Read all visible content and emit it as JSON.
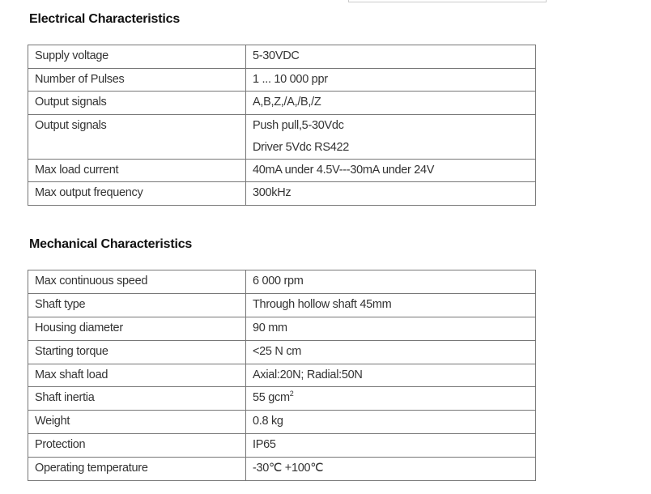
{
  "electrical": {
    "title": "Electrical Characteristics",
    "rows": [
      {
        "label": "Supply voltage",
        "values": [
          "5-30VDC"
        ]
      },
      {
        "label": "Number of Pulses",
        "values": [
          "1 ... 10 000 ppr"
        ]
      },
      {
        "label": "Output signals",
        "values": [
          "A,B,Z,/A,/B,/Z"
        ]
      },
      {
        "label": "Output signals",
        "values": [
          "Push pull,5-30Vdc",
          "Driver 5Vdc RS422"
        ]
      },
      {
        "label": "Max load current",
        "values": [
          "40mA under 4.5V---30mA under 24V"
        ]
      },
      {
        "label": "Max output frequency",
        "values": [
          "300kHz"
        ]
      }
    ]
  },
  "mechanical": {
    "title": "Mechanical Characteristics",
    "rows": [
      {
        "label": "Max continuous speed",
        "values": [
          "6 000 rpm"
        ]
      },
      {
        "label": "Shaft type",
        "values": [
          "Through hollow shaft 45mm"
        ]
      },
      {
        "label": "Housing diameter",
        "values": [
          "90 mm"
        ]
      },
      {
        "label": "Starting torque",
        "values": [
          "<25 N cm"
        ]
      },
      {
        "label": "Max shaft load",
        "values": [
          "Axial:20N; Radial:50N"
        ]
      },
      {
        "label": "Shaft inertia",
        "values": [
          "55 gcm"
        ],
        "sup": "2"
      },
      {
        "label": "Weight",
        "values": [
          "0.8 kg"
        ]
      },
      {
        "label": "Protection",
        "values": [
          "IP65"
        ]
      },
      {
        "label": "Operating temperature",
        "values": [
          "-30℃ +100℃"
        ]
      }
    ]
  }
}
